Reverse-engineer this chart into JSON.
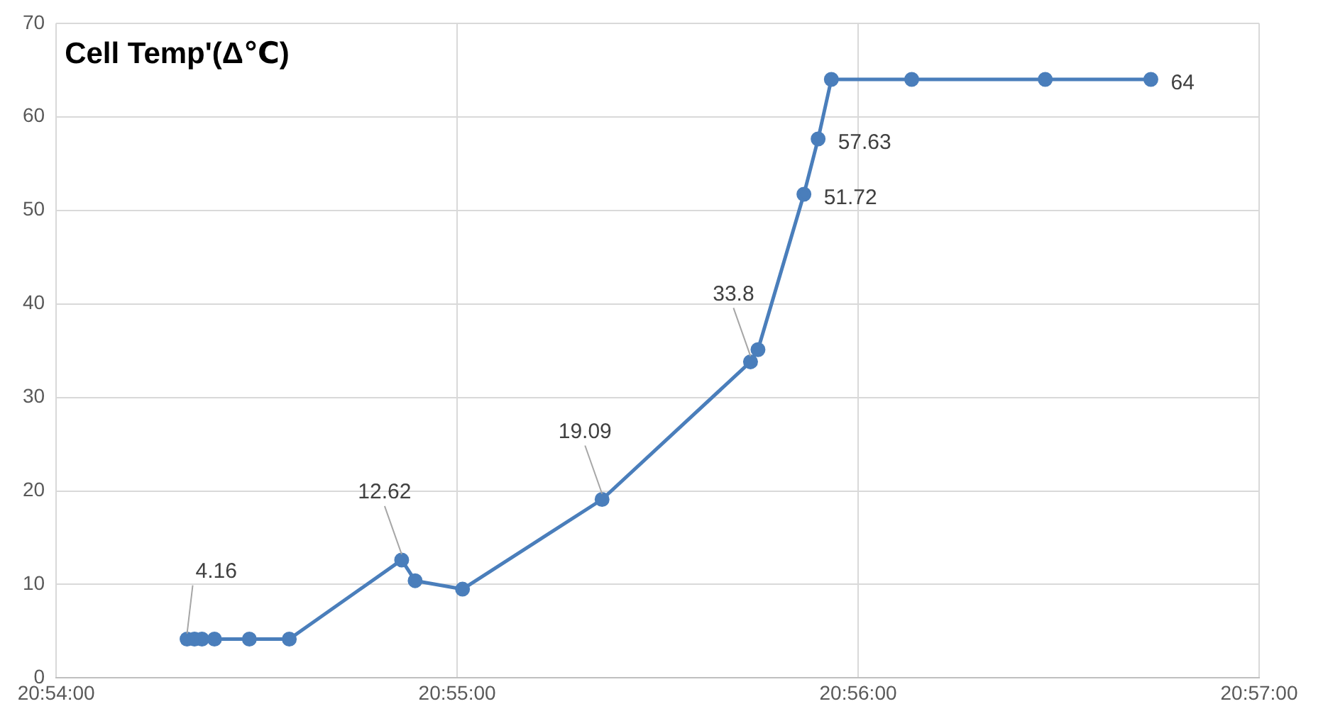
{
  "chart_data": {
    "type": "line",
    "title": "Cell Temp'(Δ℃)",
    "x": [
      20.90544,
      20.90575,
      20.90606,
      20.90658,
      20.90803,
      20.90969,
      20.91436,
      20.91492,
      20.91689,
      20.92269,
      20.92886,
      20.92917,
      20.93108,
      20.93167,
      20.93222,
      20.93556,
      20.94111,
      20.9455
    ],
    "series": [
      {
        "color": "#4a7ebb",
        "values": [
          4.16,
          4.16,
          4.16,
          4.16,
          4.16,
          4.16,
          12.62,
          10.4,
          9.5,
          19.09,
          33.8,
          35.1,
          51.72,
          57.63,
          64,
          64,
          64,
          64
        ],
        "value_labels": [
          "4.16",
          null,
          null,
          null,
          null,
          null,
          "12.62",
          null,
          null,
          "19.09",
          "33.8",
          null,
          "51.72",
          "57.63",
          null,
          null,
          null,
          "64"
        ]
      }
    ],
    "xlim": [
      20.9,
      20.95
    ],
    "xticks": [
      {
        "value": 20.9,
        "label": "20:54:00"
      },
      {
        "value": 20.916667,
        "label": "20:55:00"
      },
      {
        "value": 20.933333,
        "label": "20:56:00"
      },
      {
        "value": 20.95,
        "label": "20:57:00"
      }
    ],
    "ylim": [
      0,
      70
    ],
    "yticks": [
      0,
      10,
      20,
      30,
      40,
      50,
      60,
      70
    ],
    "grid": true,
    "legend": false,
    "marker": "circle",
    "line_style": "solid"
  }
}
